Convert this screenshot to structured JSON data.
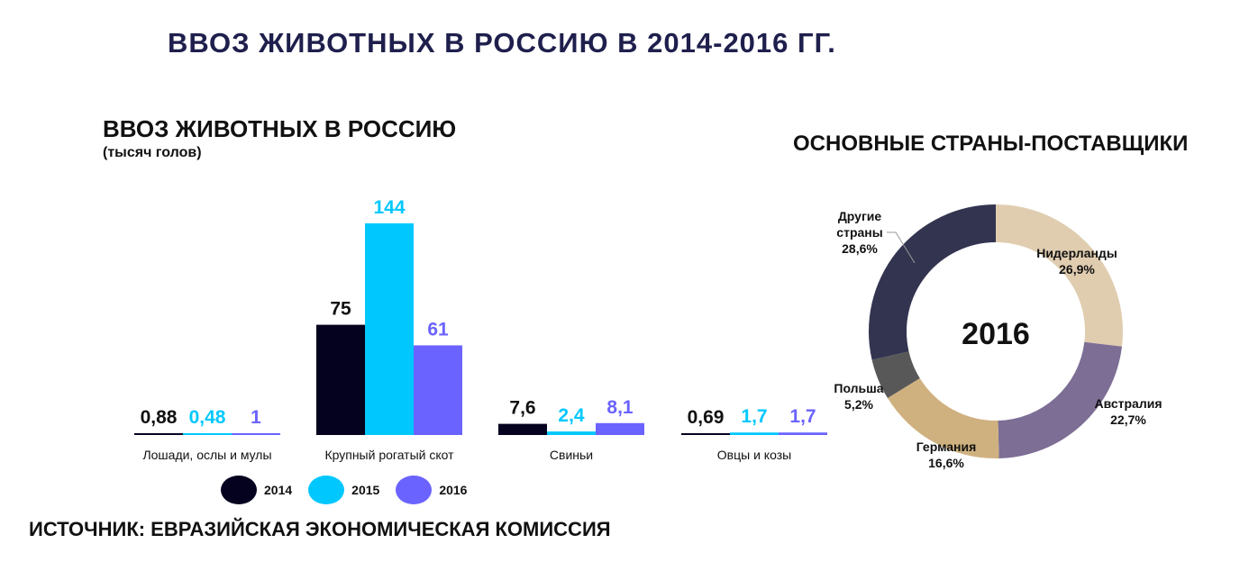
{
  "page": {
    "title": "ВВОЗ ЖИВОТНЫХ В РОССИЮ В 2014-2016 ГГ.",
    "source": "ИСТОЧНИК: ЕВРАЗИЙСКАЯ ЭКОНОМИЧЕСКАЯ КОМИССИЯ"
  },
  "chart_data": [
    {
      "type": "bar",
      "title": "ВВОЗ ЖИВОТНЫХ В РОССИЮ",
      "subtitle": "(тысяч голов)",
      "categories": [
        "Лошади, ослы и мулы",
        "Крупный рогатый скот",
        "Свиньи",
        "Овцы и козы"
      ],
      "series": [
        {
          "name": "2014",
          "color": "#04021f",
          "values": [
            0.88,
            75,
            7.6,
            0.69
          ],
          "labels": [
            "0,88",
            "75",
            "7,6",
            "0,69"
          ]
        },
        {
          "name": "2015",
          "color": "#00c8ff",
          "values": [
            0.48,
            144,
            2.4,
            1.7
          ],
          "labels": [
            "0,48",
            "144",
            "2,4",
            "1,7"
          ]
        },
        {
          "name": "2016",
          "color": "#6b63ff",
          "values": [
            1,
            61,
            8.1,
            1.7
          ],
          "labels": [
            "1",
            "61",
            "8,1",
            "1,7"
          ]
        }
      ],
      "ylim": [
        0,
        144
      ],
      "legend": "bottom",
      "grid": false
    },
    {
      "type": "pie",
      "title": "ОСНОВНЫЕ СТРАНЫ-ПОСТАВЩИКИ",
      "center_label": "2016",
      "slices": [
        {
          "name": "Нидерланды",
          "value": 26.9,
          "label": "26,9%",
          "color": "#e0cdb0"
        },
        {
          "name": "Австралия",
          "value": 22.7,
          "label": "22,7%",
          "color": "#7d6e95"
        },
        {
          "name": "Германия",
          "value": 16.6,
          "label": "16,6%",
          "color": "#cfb17f"
        },
        {
          "name": "Польша",
          "value": 5.2,
          "label": "5,2%",
          "color": "#585858"
        },
        {
          "name": "Другие страны",
          "value": 28.6,
          "label": "28,6%",
          "color": "#323450"
        }
      ]
    }
  ]
}
